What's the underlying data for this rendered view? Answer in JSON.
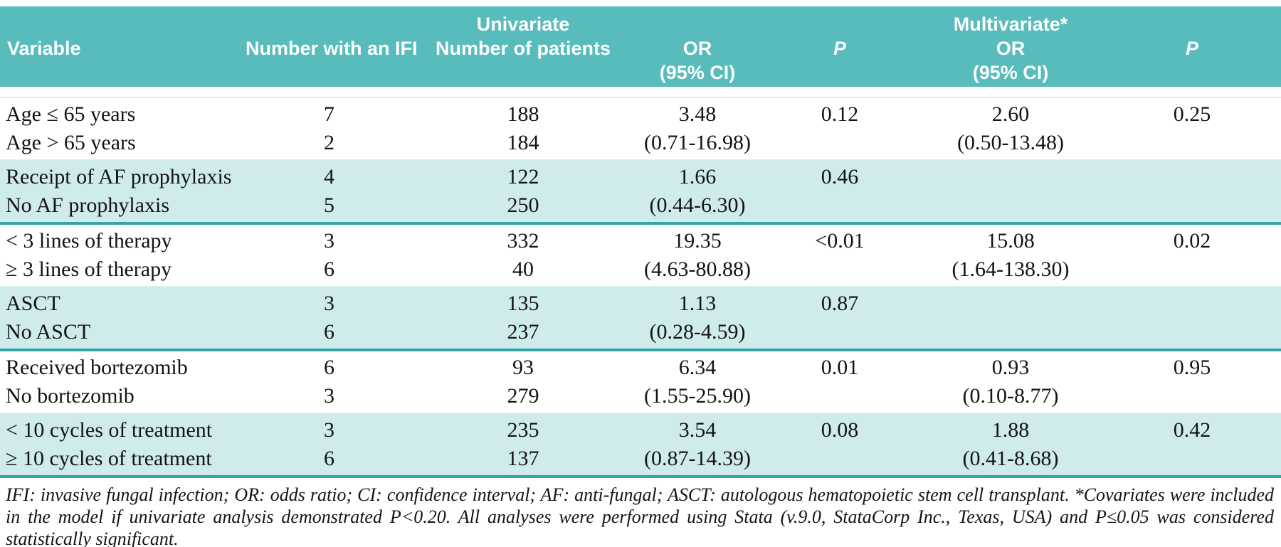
{
  "table": {
    "header": {
      "variable": "Variable",
      "ifi": "Number with an IFI",
      "univariate": "Univariate",
      "patients": "Number of patients",
      "or": "OR",
      "ci": "(95% CI)",
      "p": "P",
      "multivariate": "Multivariate*"
    },
    "groups": [
      {
        "shade": "white",
        "rows": [
          {
            "variable": "Age ≤ 65 years",
            "ifi": "7",
            "patients": "188"
          },
          {
            "variable": "Age > 65 years",
            "ifi": "2",
            "patients": "184"
          }
        ],
        "univariate": {
          "or": "3.48",
          "ci": "(0.71-16.98)",
          "p": "0.12"
        },
        "multivariate": {
          "or": "2.60",
          "ci": "(0.50-13.48)",
          "p": "0.25"
        }
      },
      {
        "shade": "teal",
        "rows": [
          {
            "variable": "Receipt of AF prophylaxis",
            "ifi": "4",
            "patients": "122"
          },
          {
            "variable": "No AF prophylaxis",
            "ifi": "5",
            "patients": "250"
          }
        ],
        "univariate": {
          "or": "1.66",
          "ci": "(0.44-6.30)",
          "p": "0.46"
        },
        "multivariate": {
          "or": "",
          "ci": "",
          "p": ""
        }
      },
      {
        "shade": "white",
        "rows": [
          {
            "variable": "< 3 lines of therapy",
            "ifi": "3",
            "patients": "332"
          },
          {
            "variable": "≥ 3 lines of therapy",
            "ifi": "6",
            "patients": "40"
          }
        ],
        "univariate": {
          "or": "19.35",
          "ci": "(4.63-80.88)",
          "p": "<0.01"
        },
        "multivariate": {
          "or": "15.08",
          "ci": "(1.64-138.30)",
          "p": "0.02"
        }
      },
      {
        "shade": "teal",
        "rows": [
          {
            "variable": "ASCT",
            "ifi": "3",
            "patients": "135"
          },
          {
            "variable": "No ASCT",
            "ifi": "6",
            "patients": "237"
          }
        ],
        "univariate": {
          "or": "1.13",
          "ci": "(0.28-4.59)",
          "p": "0.87"
        },
        "multivariate": {
          "or": "",
          "ci": "",
          "p": ""
        }
      },
      {
        "shade": "white",
        "rows": [
          {
            "variable": "Received bortezomib",
            "ifi": "6",
            "patients": "93"
          },
          {
            "variable": "No bortezomib",
            "ifi": "3",
            "patients": "279"
          }
        ],
        "univariate": {
          "or": "6.34",
          "ci": "(1.55-25.90)",
          "p": "0.01"
        },
        "multivariate": {
          "or": "0.93",
          "ci": "(0.10-8.77)",
          "p": "0.95"
        }
      },
      {
        "shade": "teal",
        "rows": [
          {
            "variable": "< 10 cycles of treatment",
            "ifi": "3",
            "patients": "235"
          },
          {
            "variable": "≥ 10 cycles of treatment",
            "ifi": "6",
            "patients": "137"
          }
        ],
        "univariate": {
          "or": "3.54",
          "ci": "(0.87-14.39)",
          "p": "0.08"
        },
        "multivariate": {
          "or": "1.88",
          "ci": "(0.41-8.68)",
          "p": "0.42"
        }
      }
    ],
    "footnote": "IFI: invasive fungal infection; OR: odds ratio; CI: confidence interval; AF: anti-fungal; ASCT: autologous hematopoietic stem cell transplant. *Covariates were included in the model if univariate analysis demonstrated P<0.20. All analyses were performed using Stata (v.9.0, StataCorp Inc., Texas, USA) and P≤0.05 was considered statistically significant."
  },
  "colors": {
    "header_bg": "#58bbbc",
    "band_bg": "#cfebeb",
    "separator_line": "#35a4a6",
    "header_text": "#ffffff",
    "body_text": "#141414"
  }
}
